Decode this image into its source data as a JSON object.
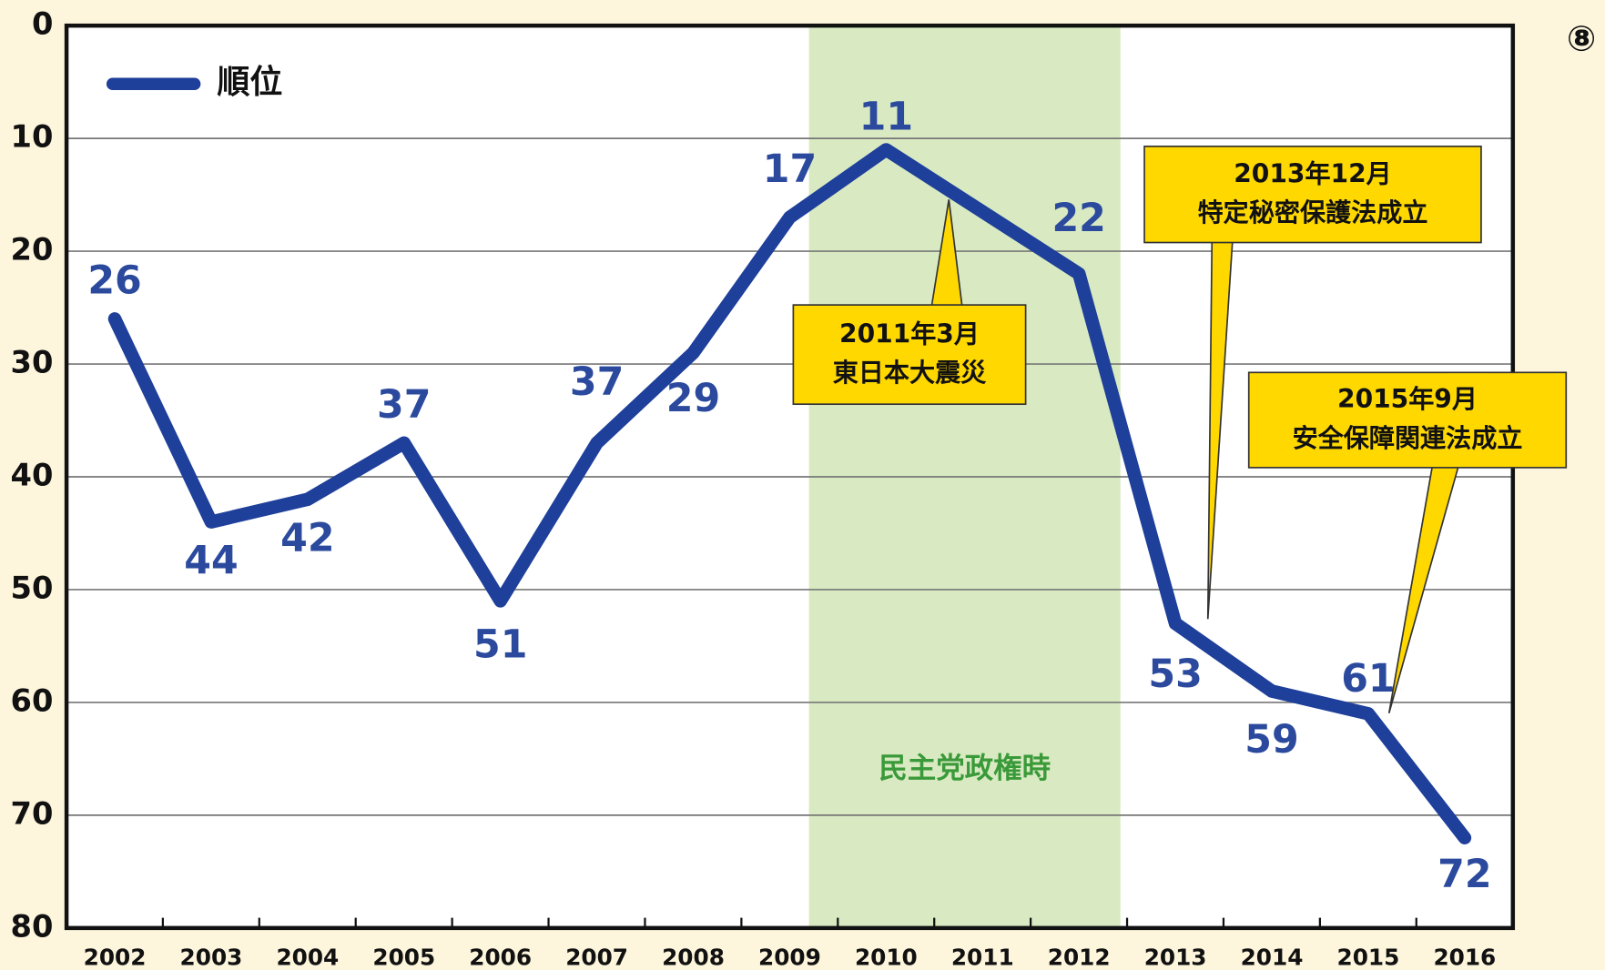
{
  "chart_data": {
    "type": "line",
    "corner_mark": "⑧",
    "x": [
      2002,
      2003,
      2004,
      2005,
      2006,
      2007,
      2008,
      2009,
      2010,
      2012,
      2013,
      2014,
      2015,
      2016
    ],
    "series": [
      {
        "name": "順位",
        "color": "#1e3f9a",
        "values": [
          26,
          44,
          42,
          37,
          51,
          37,
          29,
          17,
          11,
          22,
          53,
          59,
          61,
          72
        ]
      }
    ],
    "xlim": [
      2001.5,
      2016.5
    ],
    "xticks": [
      2002,
      2003,
      2004,
      2005,
      2006,
      2007,
      2008,
      2009,
      2010,
      2011,
      2012,
      2013,
      2014,
      2015,
      2016
    ],
    "ylim": [
      0,
      80
    ],
    "y_inverted": true,
    "yticks": [
      0,
      10,
      20,
      30,
      40,
      50,
      60,
      70,
      80
    ],
    "grid": true,
    "legend": "top-left",
    "shaded_span": {
      "range": [
        2009.2,
        2012.43
      ],
      "color": "#d9eac2",
      "label": "民主党政権時",
      "label_color": "#3a9a3a"
    },
    "annotations": [
      {
        "lines": [
          "2011年3月",
          "東日本大震災"
        ]
      },
      {
        "lines": [
          "2013年12月",
          "特定秘密保護法成立"
        ]
      },
      {
        "lines": [
          "2015年9月",
          "安全保障関連法成立"
        ]
      }
    ]
  }
}
